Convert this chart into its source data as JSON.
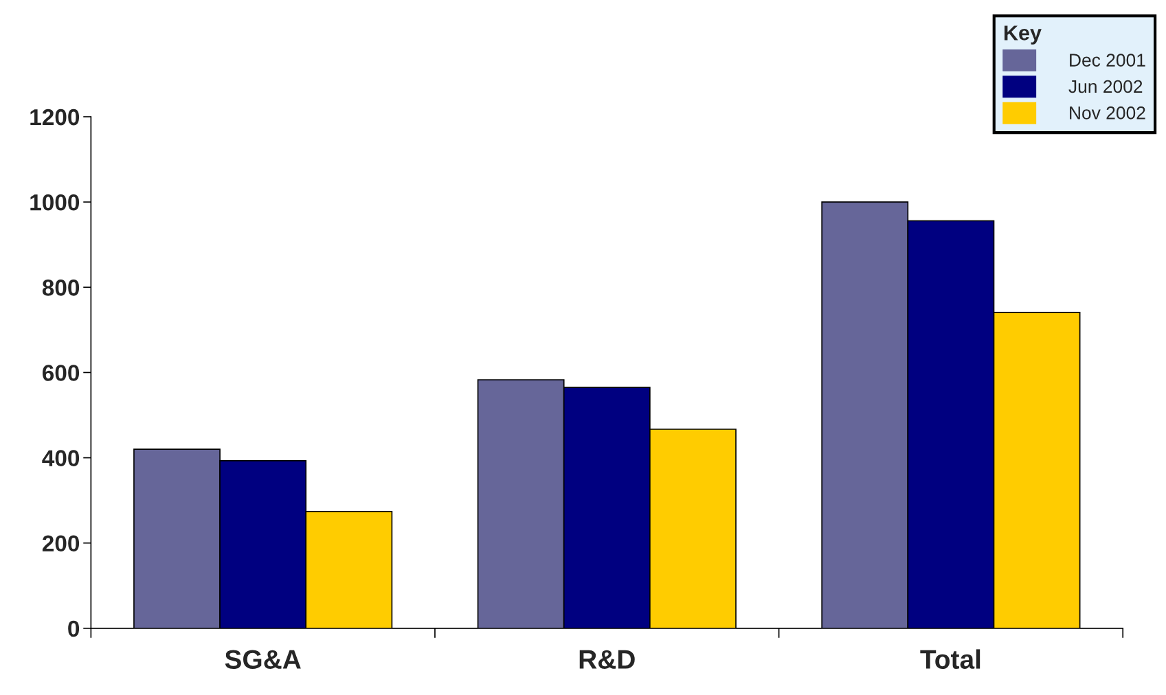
{
  "chart_data": {
    "type": "bar",
    "categories": [
      "SG&A",
      "R&D",
      "Total"
    ],
    "series": [
      {
        "name": "Dec 2001",
        "color": "#666699",
        "values": [
          420,
          583,
          1000
        ]
      },
      {
        "name": "Jun 2002",
        "color": "#000080",
        "values": [
          393,
          565,
          956
        ]
      },
      {
        "name": "Nov 2002",
        "color": "#ffcc00",
        "values": [
          274,
          467,
          741
        ]
      }
    ],
    "legend_title": "Key",
    "legend": "top right",
    "ylim": [
      0,
      1200
    ],
    "yticks": [
      0,
      200,
      400,
      600,
      800,
      1000,
      1200
    ],
    "grid": false
  }
}
